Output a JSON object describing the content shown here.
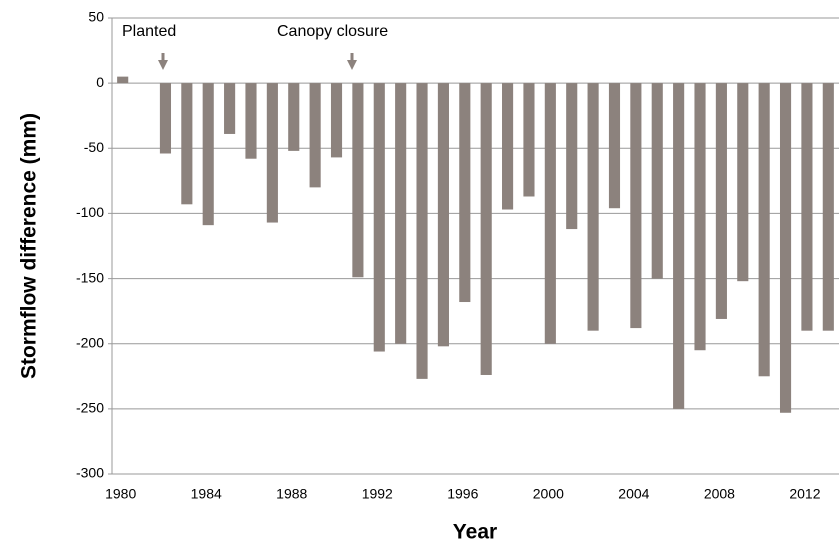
{
  "chart_data": {
    "type": "bar",
    "y_label": "Stormflow difference (mm)",
    "x_label": "Year",
    "annotations": [
      "Planted",
      "Canopy closure"
    ],
    "categories": [
      "1980",
      null,
      null,
      null,
      "1984",
      null,
      null,
      null,
      "1988",
      null,
      null,
      null,
      "1992",
      null,
      null,
      null,
      "1996",
      null,
      null,
      null,
      "2000",
      null,
      null,
      null,
      "2004",
      null,
      null,
      null,
      "2008",
      null,
      null,
      null,
      "2012",
      null
    ],
    "values": [
      5,
      null,
      -54,
      -93,
      -109,
      -39,
      -58,
      -107,
      -52,
      -80,
      -57,
      -149,
      -206,
      -200,
      -227,
      -202,
      -168,
      -224,
      -97,
      -87,
      -200,
      -112,
      -190,
      -96,
      -188,
      -150,
      -250,
      -205,
      -181,
      -152,
      -225,
      -253,
      -190,
      -190
    ],
    "color": "#8c827d",
    "ylim": [
      -300,
      50
    ],
    "yticks": [
      50,
      0,
      -50,
      -100,
      -150,
      -200,
      -250,
      -300
    ],
    "grid": true
  }
}
